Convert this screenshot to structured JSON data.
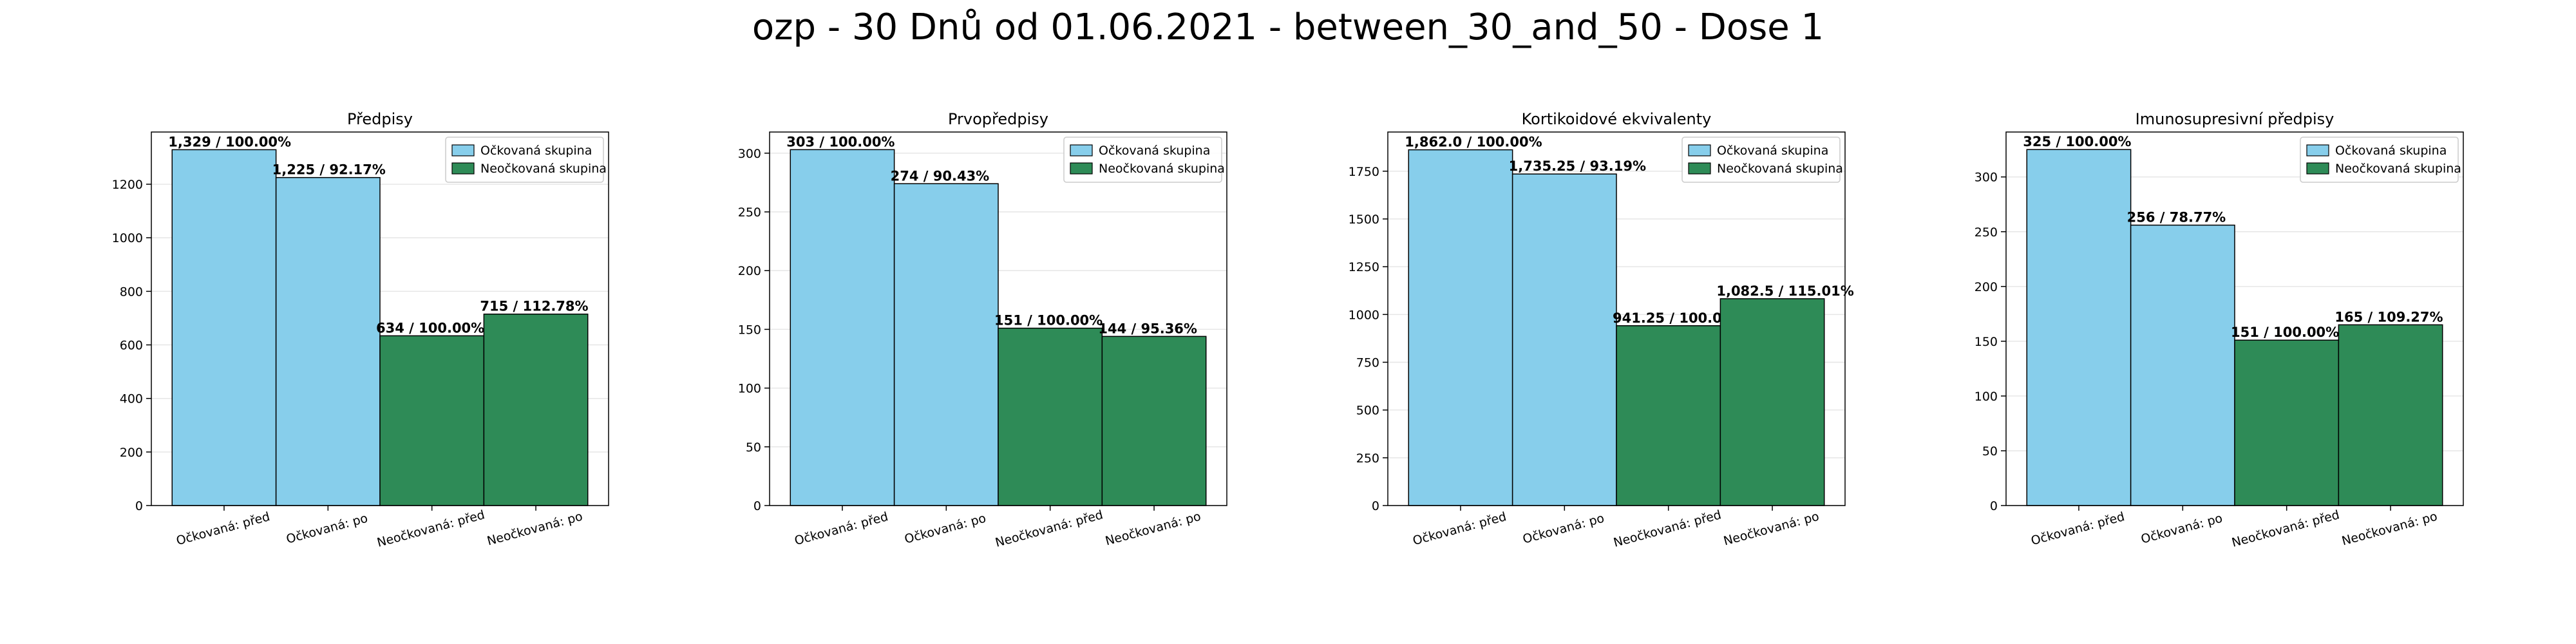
{
  "title": "ozp - 30 Dnů od 01.06.2021 - between_30_and_50 - Dose 1",
  "colors": {
    "vaccinated": "#87ceeb",
    "unvaccinated": "#2e8b57",
    "edge": "#000000",
    "grid": "#e6e6e6"
  },
  "chart_data": [
    {
      "type": "bar",
      "title": "Předpisy",
      "categories": [
        "Očkovaná: před",
        "Očkovaná: po",
        "Neočkovaná: před",
        "Neočkovaná: po"
      ],
      "values": [
        1329,
        1225,
        634,
        715
      ],
      "labels": [
        "1,329 / 100.00%",
        "1,225 / 92.17%",
        "634 / 100.00%",
        "715 / 112.78%"
      ],
      "groups": [
        "vaccinated",
        "vaccinated",
        "unvaccinated",
        "unvaccinated"
      ],
      "yticks": [
        0,
        200,
        400,
        600,
        800,
        1000,
        1200
      ],
      "ylim": [
        0,
        1395
      ],
      "legend": [
        "Očkovaná skupina",
        "Neočkovaná skupina"
      ],
      "legend_position": "top-right",
      "grid": "y"
    },
    {
      "type": "bar",
      "title": "Prvopředpisy",
      "categories": [
        "Očkovaná: před",
        "Očkovaná: po",
        "Neočkovaná: před",
        "Neočkovaná: po"
      ],
      "values": [
        303,
        274,
        151,
        144
      ],
      "labels": [
        "303 / 100.00%",
        "274 / 90.43%",
        "151 / 100.00%",
        "144 / 95.36%"
      ],
      "groups": [
        "vaccinated",
        "vaccinated",
        "unvaccinated",
        "unvaccinated"
      ],
      "yticks": [
        0,
        50,
        100,
        150,
        200,
        250,
        300
      ],
      "ylim": [
        0,
        318
      ],
      "legend": [
        "Očkovaná skupina",
        "Neočkovaná skupina"
      ],
      "legend_position": "top-right",
      "grid": "y"
    },
    {
      "type": "bar",
      "title": "Kortikoidové ekvivalenty",
      "categories": [
        "Očkovaná: před",
        "Očkovaná: po",
        "Neočkovaná: před",
        "Neočkovaná: po"
      ],
      "values": [
        1862.0,
        1735.25,
        941.25,
        1082.5
      ],
      "labels": [
        "1,862.0 / 100.00%",
        "1,735.25 / 93.19%",
        "941.25 / 100.00%",
        "1,082.5 / 115.01%"
      ],
      "groups": [
        "vaccinated",
        "vaccinated",
        "unvaccinated",
        "unvaccinated"
      ],
      "yticks": [
        0,
        250,
        500,
        750,
        1000,
        1250,
        1500,
        1750
      ],
      "ylim": [
        0,
        1955
      ],
      "legend": [
        "Očkovaná skupina",
        "Neočkovaná skupina"
      ],
      "legend_position": "top-right",
      "grid": "y"
    },
    {
      "type": "bar",
      "title": "Imunosupresivní předpisy",
      "categories": [
        "Očkovaná: před",
        "Očkovaná: po",
        "Neočkovaná: před",
        "Neočkovaná: po"
      ],
      "values": [
        325,
        256,
        151,
        165
      ],
      "labels": [
        "325 / 100.00%",
        "256 / 78.77%",
        "151 / 100.00%",
        "165 / 109.27%"
      ],
      "groups": [
        "vaccinated",
        "vaccinated",
        "unvaccinated",
        "unvaccinated"
      ],
      "yticks": [
        0,
        50,
        100,
        150,
        200,
        250,
        300
      ],
      "ylim": [
        0,
        341
      ],
      "legend": [
        "Očkovaná skupina",
        "Neočkovaná skupina"
      ],
      "legend_position": "top-right",
      "grid": "y"
    }
  ]
}
